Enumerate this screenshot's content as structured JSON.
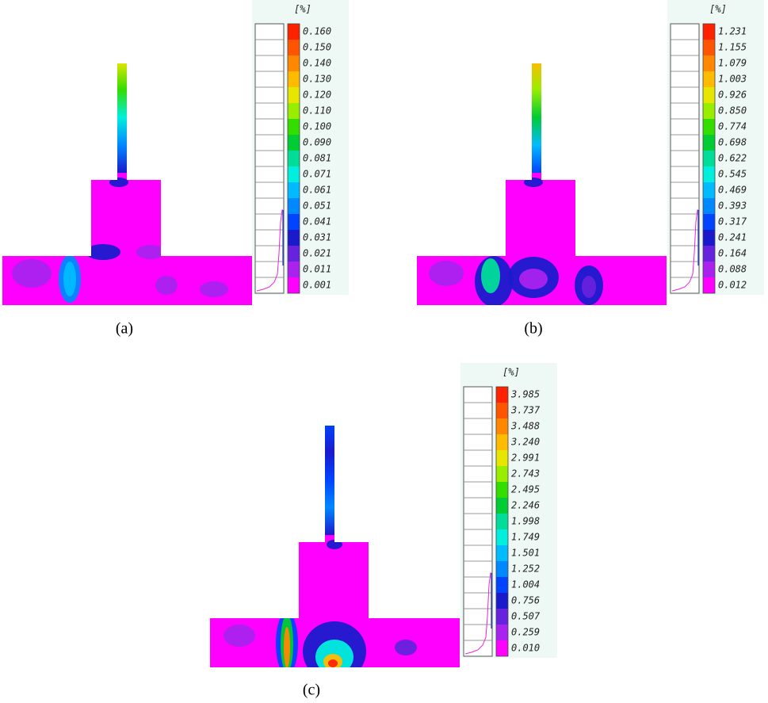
{
  "legend_colors": [
    "#ff2200",
    "#ff5500",
    "#ff8800",
    "#ffbb00",
    "#e6e600",
    "#99ee00",
    "#33dd00",
    "#00cc33",
    "#00dd99",
    "#00eedd",
    "#00bbff",
    "#0088ff",
    "#0044ff",
    "#1a1acc",
    "#6622dd",
    "#aa22ee",
    "#ff00ff"
  ],
  "panels": [
    {
      "caption": "(a)",
      "unit": "[%]",
      "legend_labels": [
        "0.160",
        "0.150",
        "0.140",
        "0.130",
        "0.120",
        "0.110",
        "0.100",
        "0.090",
        "0.081",
        "0.071",
        "0.061",
        "0.051",
        "0.041",
        "0.031",
        "0.021",
        "0.011",
        "0.001"
      ]
    },
    {
      "caption": "(b)",
      "unit": "[%]",
      "legend_labels": [
        "1.231",
        "1.155",
        "1.079",
        "1.003",
        "0.926",
        "0.850",
        "0.774",
        "0.698",
        "0.622",
        "0.545",
        "0.469",
        "0.393",
        "0.317",
        "0.241",
        "0.164",
        "0.088",
        "0.012"
      ]
    },
    {
      "caption": "(c)",
      "unit": "[%]",
      "legend_labels": [
        "3.985",
        "3.737",
        "3.488",
        "3.240",
        "2.991",
        "2.743",
        "2.495",
        "2.246",
        "1.998",
        "1.749",
        "1.501",
        "1.252",
        "1.004",
        "0.756",
        "0.507",
        "0.259",
        "0.010"
      ]
    }
  ]
}
